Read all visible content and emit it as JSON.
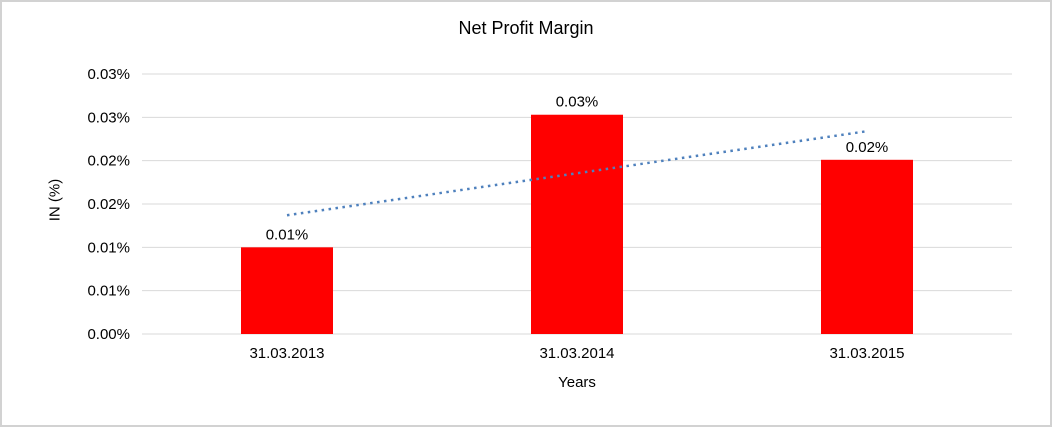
{
  "chart_data": {
    "type": "bar",
    "title": "Net Profit Margin",
    "xlabel": "Years",
    "ylabel": "IN (%)",
    "categories": [
      "31.03.2013",
      "31.03.2014",
      "31.03.2015"
    ],
    "series": [
      {
        "name": "Net Profit Margin",
        "values": [
          0.01,
          0.0253,
          0.0201
        ]
      }
    ],
    "data_labels": [
      "0.01%",
      "0.03%",
      "0.02%"
    ],
    "ylim": [
      0,
      0.03
    ],
    "y_ticks": [
      0,
      0.005,
      0.01,
      0.015,
      0.02,
      0.025,
      0.03
    ],
    "y_tick_labels": [
      "0.00%",
      "0.01%",
      "0.01%",
      "0.02%",
      "0.02%",
      "0.03%",
      "0.03%"
    ],
    "grid": true,
    "legend": "none",
    "trendline": {
      "type": "linear",
      "style": "dotted",
      "values": [
        0.0137,
        0.0234
      ]
    },
    "colors": {
      "bar": "#FF0000",
      "trendline": "#4F81BD",
      "gridline": "#D9D9D9",
      "text": "#000000",
      "background": "#FFFFFF",
      "frame_border": "#D2D2D2"
    }
  }
}
